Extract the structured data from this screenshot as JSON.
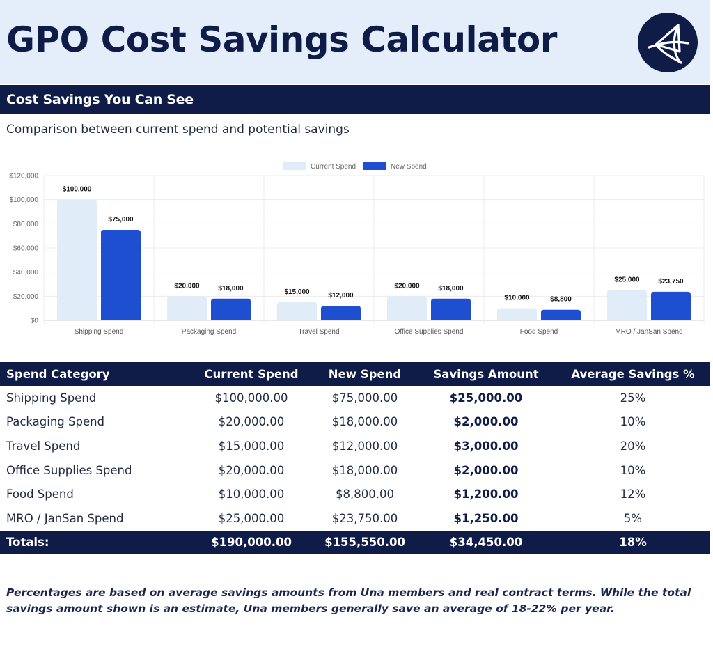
{
  "header": {
    "title": "GPO Cost Savings Calculator",
    "logo_icon": "triangle-knot-icon"
  },
  "section": {
    "band_title": "Cost Savings You Can See",
    "subtitle": "Comparison between current spend and potential savings"
  },
  "chart_data": {
    "type": "bar",
    "categories": [
      "Shipping Spend",
      "Packaging Spend",
      "Travel Spend",
      "Office Supplies Spend",
      "Food Spend",
      "MRO / JanSan Spend"
    ],
    "series": [
      {
        "name": "Current Spend",
        "color": "#e1ecf9",
        "values": [
          100000,
          20000,
          15000,
          20000,
          10000,
          25000
        ],
        "labels": [
          "$100,000",
          "$20,000",
          "$15,000",
          "$20,000",
          "$10,000",
          "$25,000"
        ]
      },
      {
        "name": "New Spend",
        "color": "#1f4fd1",
        "values": [
          75000,
          18000,
          12000,
          18000,
          8800,
          23750
        ],
        "labels": [
          "$75,000",
          "$18,000",
          "$12,000",
          "$18,000",
          "$8,800",
          "$23,750"
        ]
      }
    ],
    "ylim": [
      0,
      120000
    ],
    "yticks": [
      0,
      20000,
      40000,
      60000,
      80000,
      100000,
      120000
    ],
    "ytick_labels": [
      "$0",
      "$20,000",
      "$40,000",
      "$60,000",
      "$80,000",
      "$100,000",
      "$120,000"
    ],
    "legend_position": "top-center",
    "grid": true
  },
  "table": {
    "headers": [
      "Spend Category",
      "Current Spend",
      "New Spend",
      "Savings Amount",
      "Average Savings %"
    ],
    "rows": [
      [
        "Shipping Spend",
        "$100,000.00",
        "$75,000.00",
        "$25,000.00",
        "25%"
      ],
      [
        "Packaging Spend",
        "$20,000.00",
        "$18,000.00",
        "$2,000.00",
        "10%"
      ],
      [
        "Travel Spend",
        "$15,000.00",
        "$12,000.00",
        "$3,000.00",
        "20%"
      ],
      [
        "Office Supplies Spend",
        "$20,000.00",
        "$18,000.00",
        "$2,000.00",
        "10%"
      ],
      [
        "Food Spend",
        "$10,000.00",
        "$8,800.00",
        "$1,200.00",
        "12%"
      ],
      [
        "MRO / JanSan Spend",
        "$25,000.00",
        "$23,750.00",
        "$1,250.00",
        "5%"
      ]
    ],
    "totals": [
      "Totals:",
      "$190,000.00",
      "$155,550.00",
      "$34,450.00",
      "18%"
    ]
  },
  "note": "Percentages are based on average savings amounts from Una members and real contract terms. While the total savings amount shown is an estimate, Una members generally save an average of 18-22% per year."
}
